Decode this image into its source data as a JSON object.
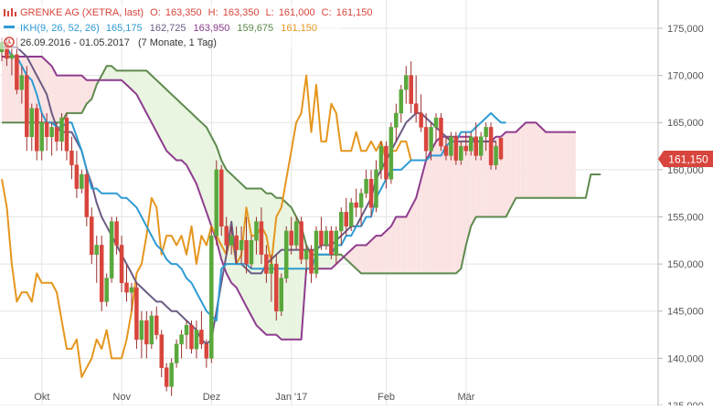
{
  "legend": {
    "main_title": "GRENKE AG (XETRA, last)",
    "ohlc": [
      {
        "label": "O:",
        "value": "163,350"
      },
      {
        "label": "H:",
        "value": "163,350"
      },
      {
        "label": "L:",
        "value": "161,000"
      },
      {
        "label": "C:",
        "value": "161,150"
      }
    ],
    "indicator_title": "IKH(9, 26, 52, 26)",
    "indicator_values": [
      "165,175",
      "162,725",
      "163,950",
      "159,675",
      "161,150"
    ],
    "range_text": "26.09.2016 - 01.05.2017",
    "duration_text": "(7 Monate, 1 Tag)"
  },
  "colors": {
    "up": "#5aa83c",
    "down": "#d8453c",
    "candle_wick": "#9a3030",
    "tenkan": "#2e9bd4",
    "kijun": "#6c5b84",
    "senkou_a": "#5e8a4e",
    "senkou_b": "#8e3c8e",
    "chikou": "#e5961e",
    "kumo_bull": "#e9f5e0",
    "kumo_bear": "#fbe3e3",
    "last_price_bg": "#d8453c",
    "grid": "#e4e4e4"
  },
  "chart_data": {
    "type": "candlestick",
    "title": "GRENKE AG (XETRA, last)",
    "x_ticks": [
      "Okt",
      "Nov",
      "Dez",
      "Jan '17",
      "Feb",
      "Mär"
    ],
    "y_ticks": [
      "135,000",
      "140,000",
      "145,000",
      "150,000",
      "155,000",
      "160,000",
      "165,000",
      "170,000",
      "175,000"
    ],
    "ylim": [
      135,
      178
    ],
    "last_price_label": "161,150",
    "last_price": 161.15,
    "grid": true,
    "legend_position": "top-left",
    "candles": [
      {
        "o": 172.5,
        "h": 174,
        "l": 171.5,
        "c": 173.5
      },
      {
        "o": 173.5,
        "h": 174,
        "l": 171,
        "c": 171.8
      },
      {
        "o": 171.8,
        "h": 173,
        "l": 170,
        "c": 172.2
      },
      {
        "o": 172.2,
        "h": 174,
        "l": 168,
        "c": 168.5
      },
      {
        "o": 168.5,
        "h": 171,
        "l": 167,
        "c": 170
      },
      {
        "o": 170,
        "h": 171,
        "l": 162,
        "c": 163.5
      },
      {
        "o": 163.5,
        "h": 167,
        "l": 162,
        "c": 166.5
      },
      {
        "o": 166.5,
        "h": 167,
        "l": 161,
        "c": 162
      },
      {
        "o": 162,
        "h": 166,
        "l": 161,
        "c": 165
      },
      {
        "o": 165,
        "h": 166,
        "l": 162,
        "c": 163.5
      },
      {
        "o": 163.5,
        "h": 165,
        "l": 161.5,
        "c": 164.5
      },
      {
        "o": 164.5,
        "h": 165,
        "l": 162,
        "c": 163
      },
      {
        "o": 163,
        "h": 166,
        "l": 162,
        "c": 165.5
      },
      {
        "o": 165.5,
        "h": 166,
        "l": 161,
        "c": 162
      },
      {
        "o": 162,
        "h": 163.5,
        "l": 159,
        "c": 160.5
      },
      {
        "o": 160.5,
        "h": 162,
        "l": 157,
        "c": 158
      },
      {
        "o": 158,
        "h": 160,
        "l": 157.5,
        "c": 159.5
      },
      {
        "o": 159.5,
        "h": 160,
        "l": 154,
        "c": 155
      },
      {
        "o": 155,
        "h": 156,
        "l": 150,
        "c": 151
      },
      {
        "o": 151,
        "h": 153,
        "l": 148,
        "c": 152
      },
      {
        "o": 152,
        "h": 153,
        "l": 145,
        "c": 146
      },
      {
        "o": 146,
        "h": 149,
        "l": 145.5,
        "c": 148.5
      },
      {
        "o": 148.5,
        "h": 155,
        "l": 148,
        "c": 154.5
      },
      {
        "o": 154.5,
        "h": 155,
        "l": 151,
        "c": 152
      },
      {
        "o": 152,
        "h": 153,
        "l": 147,
        "c": 148
      },
      {
        "o": 148,
        "h": 150,
        "l": 146,
        "c": 147
      },
      {
        "o": 147,
        "h": 148,
        "l": 145,
        "c": 147.5
      },
      {
        "o": 147.5,
        "h": 148,
        "l": 141,
        "c": 142
      },
      {
        "o": 142,
        "h": 145,
        "l": 140,
        "c": 144
      },
      {
        "o": 144,
        "h": 145,
        "l": 140,
        "c": 141.5
      },
      {
        "o": 141.5,
        "h": 145,
        "l": 141,
        "c": 144.5
      },
      {
        "o": 144.5,
        "h": 145.5,
        "l": 142,
        "c": 142.5
      },
      {
        "o": 142.5,
        "h": 143,
        "l": 138,
        "c": 139
      },
      {
        "o": 139,
        "h": 139.5,
        "l": 136.5,
        "c": 137
      },
      {
        "o": 137,
        "h": 140,
        "l": 136,
        "c": 139.5
      },
      {
        "o": 139.5,
        "h": 142,
        "l": 139,
        "c": 141.5
      },
      {
        "o": 141.5,
        "h": 143,
        "l": 140,
        "c": 142.5
      },
      {
        "o": 142.5,
        "h": 144,
        "l": 141,
        "c": 143.5
      },
      {
        "o": 143.5,
        "h": 144,
        "l": 140.5,
        "c": 141
      },
      {
        "o": 141,
        "h": 144,
        "l": 140,
        "c": 143
      },
      {
        "o": 143,
        "h": 145,
        "l": 141,
        "c": 141.5
      },
      {
        "o": 141.5,
        "h": 142,
        "l": 139,
        "c": 140
      },
      {
        "o": 140,
        "h": 154,
        "l": 139.5,
        "c": 153
      },
      {
        "o": 153,
        "h": 161,
        "l": 152,
        "c": 160
      },
      {
        "o": 160,
        "h": 160.5,
        "l": 153,
        "c": 154
      },
      {
        "o": 154,
        "h": 155,
        "l": 151,
        "c": 152
      },
      {
        "o": 152,
        "h": 154,
        "l": 151,
        "c": 153
      },
      {
        "o": 153,
        "h": 154,
        "l": 150,
        "c": 151.5
      },
      {
        "o": 151.5,
        "h": 154,
        "l": 150,
        "c": 152.5
      },
      {
        "o": 152.5,
        "h": 155,
        "l": 149,
        "c": 150
      },
      {
        "o": 150,
        "h": 153,
        "l": 149.5,
        "c": 152.5
      },
      {
        "o": 152.5,
        "h": 155,
        "l": 151,
        "c": 154.5
      },
      {
        "o": 154.5,
        "h": 156,
        "l": 150,
        "c": 151
      },
      {
        "o": 151,
        "h": 152,
        "l": 148,
        "c": 149
      },
      {
        "o": 149,
        "h": 151,
        "l": 146,
        "c": 150
      },
      {
        "o": 150,
        "h": 151,
        "l": 144,
        "c": 145
      },
      {
        "o": 145,
        "h": 149,
        "l": 144.5,
        "c": 148.5
      },
      {
        "o": 148.5,
        "h": 154,
        "l": 148,
        "c": 153.5
      },
      {
        "o": 153.5,
        "h": 155,
        "l": 151,
        "c": 152
      },
      {
        "o": 152,
        "h": 155,
        "l": 151.5,
        "c": 154.5
      },
      {
        "o": 154.5,
        "h": 155,
        "l": 150,
        "c": 150.5
      },
      {
        "o": 150.5,
        "h": 152,
        "l": 149,
        "c": 151.5
      },
      {
        "o": 151.5,
        "h": 152,
        "l": 148,
        "c": 149
      },
      {
        "o": 149,
        "h": 154,
        "l": 148.5,
        "c": 153.5
      },
      {
        "o": 153.5,
        "h": 155,
        "l": 151.5,
        "c": 152
      },
      {
        "o": 152,
        "h": 154,
        "l": 151.5,
        "c": 153.5
      },
      {
        "o": 153.5,
        "h": 154,
        "l": 150.5,
        "c": 151
      },
      {
        "o": 151,
        "h": 154,
        "l": 150,
        "c": 153.5
      },
      {
        "o": 153.5,
        "h": 156,
        "l": 152,
        "c": 155.5
      },
      {
        "o": 155.5,
        "h": 157,
        "l": 153,
        "c": 154
      },
      {
        "o": 154,
        "h": 157,
        "l": 153.5,
        "c": 156.5
      },
      {
        "o": 156.5,
        "h": 158,
        "l": 155,
        "c": 156
      },
      {
        "o": 156,
        "h": 158,
        "l": 154,
        "c": 157.5
      },
      {
        "o": 157.5,
        "h": 160,
        "l": 157,
        "c": 159
      },
      {
        "o": 159,
        "h": 160,
        "l": 155,
        "c": 156
      },
      {
        "o": 156,
        "h": 161,
        "l": 155.5,
        "c": 160
      },
      {
        "o": 160,
        "h": 163,
        "l": 159,
        "c": 162.5
      },
      {
        "o": 162.5,
        "h": 163,
        "l": 158,
        "c": 159
      },
      {
        "o": 159,
        "h": 165,
        "l": 158.5,
        "c": 164.5
      },
      {
        "o": 164.5,
        "h": 167,
        "l": 163,
        "c": 166
      },
      {
        "o": 166,
        "h": 169,
        "l": 165,
        "c": 168.5
      },
      {
        "o": 168.5,
        "h": 171,
        "l": 167,
        "c": 170
      },
      {
        "o": 170,
        "h": 171.5,
        "l": 166,
        "c": 167
      },
      {
        "o": 167,
        "h": 170,
        "l": 165,
        "c": 166
      },
      {
        "o": 166,
        "h": 168,
        "l": 164,
        "c": 164.5
      },
      {
        "o": 164.5,
        "h": 166,
        "l": 161,
        "c": 162
      },
      {
        "o": 162,
        "h": 165,
        "l": 161,
        "c": 164.5
      },
      {
        "o": 164.5,
        "h": 166,
        "l": 163,
        "c": 165.5
      },
      {
        "o": 165.5,
        "h": 166,
        "l": 162,
        "c": 162.5
      },
      {
        "o": 162.5,
        "h": 163.5,
        "l": 161,
        "c": 161.5
      },
      {
        "o": 161.5,
        "h": 164,
        "l": 161,
        "c": 163.5
      },
      {
        "o": 163.5,
        "h": 164,
        "l": 160.5,
        "c": 161
      },
      {
        "o": 161,
        "h": 163,
        "l": 160.5,
        "c": 162.5
      },
      {
        "o": 162.5,
        "h": 164,
        "l": 161.5,
        "c": 162
      },
      {
        "o": 162,
        "h": 164,
        "l": 161.5,
        "c": 163.5
      },
      {
        "o": 163.5,
        "h": 165,
        "l": 161,
        "c": 161.5
      },
      {
        "o": 161.5,
        "h": 164,
        "l": 161,
        "c": 163.5
      },
      {
        "o": 163.5,
        "h": 165,
        "l": 162,
        "c": 164.5
      },
      {
        "o": 164.5,
        "h": 165,
        "l": 160,
        "c": 160.5
      },
      {
        "o": 160.5,
        "h": 163,
        "l": 160,
        "c": 162.5
      },
      {
        "o": 163.35,
        "h": 163.35,
        "l": 161,
        "c": 161.15
      }
    ],
    "series": [
      {
        "name": "tenkan",
        "color_key": "tenkan",
        "start": 0,
        "values": [
          173,
          173,
          172,
          172,
          171,
          170,
          169.5,
          168,
          166,
          165,
          165,
          164.5,
          164.5,
          165,
          165,
          163.5,
          162,
          160,
          158,
          158,
          157.5,
          157.5,
          157.5,
          157.5,
          157,
          157,
          156.5,
          156,
          155,
          154,
          153,
          152,
          151.5,
          150.5,
          150,
          150,
          149.5,
          148.5,
          148,
          147,
          146,
          145,
          144.5,
          144,
          149.5,
          150,
          150,
          150,
          150,
          150,
          149.5,
          149.5,
          149.5,
          149.5,
          149.5,
          149.5,
          149.5,
          149.5,
          149.5,
          149.5,
          149.5,
          149.5,
          149.5,
          151,
          151,
          151,
          151,
          152,
          152,
          153,
          153,
          154,
          154,
          155,
          155,
          157,
          158,
          159,
          160,
          160,
          160,
          160.5,
          161,
          161,
          161,
          161,
          161.5,
          161.5,
          161.5,
          162.5,
          163,
          163,
          164,
          164,
          164,
          164.5,
          165,
          165.5,
          166,
          165.5,
          165,
          165
        ]
      },
      {
        "name": "kijun",
        "color_key": "kijun",
        "start": 0,
        "values": [
          173,
          173,
          173,
          173,
          172.5,
          172,
          171,
          170,
          169,
          168,
          166,
          164.5,
          164,
          164,
          164,
          163,
          162,
          160,
          158.5,
          156.5,
          155,
          154,
          153,
          152,
          151,
          150,
          149,
          148,
          147.5,
          147,
          146.5,
          146,
          146,
          145.5,
          145,
          145,
          144.5,
          144,
          143.5,
          143,
          142,
          141.5,
          142,
          145,
          148,
          151,
          154.5,
          150,
          150,
          149.5,
          149,
          149,
          149,
          150,
          150.5,
          151,
          151.5,
          151.5,
          151.5,
          151.5,
          151.5,
          151.5,
          151.5,
          151.5,
          152,
          152,
          152,
          152.5,
          153,
          153.5,
          154,
          154,
          155,
          156,
          157,
          159,
          160,
          161,
          162,
          163,
          164,
          165,
          165.5,
          166,
          166,
          165.5,
          165,
          164.5,
          164,
          163.5,
          163,
          163,
          163,
          163,
          163,
          163,
          163,
          163,
          163,
          163
        ]
      },
      {
        "name": "senkou_a",
        "color_key": "senkou_a",
        "start": 0,
        "values": [
          165,
          165,
          165,
          165,
          165,
          165,
          165,
          165,
          165,
          165,
          165,
          165,
          165,
          166,
          166,
          166,
          166,
          167,
          167.5,
          169,
          170,
          171,
          171,
          170.5,
          170.5,
          170.5,
          170.5,
          170.5,
          170.5,
          170.5,
          170,
          169.5,
          169,
          168.5,
          168,
          167.5,
          167,
          166.5,
          166,
          165.5,
          165,
          164.5,
          163.5,
          162.5,
          161,
          160,
          159.5,
          159,
          158.5,
          158,
          158,
          158,
          158,
          157.5,
          157.5,
          157,
          157,
          156.5,
          156,
          155,
          154,
          152,
          151,
          151,
          151,
          151,
          151,
          151,
          151,
          150.5,
          150,
          149.5,
          149,
          149,
          149,
          149,
          149,
          149,
          149,
          149,
          149,
          149,
          149,
          149,
          149,
          149,
          149,
          149,
          149,
          149,
          149,
          149,
          149.5,
          152,
          154,
          155,
          155,
          155,
          155,
          155,
          155,
          155,
          156,
          157,
          157,
          157,
          157,
          157,
          157,
          157,
          157,
          157,
          157,
          157,
          157,
          157,
          157,
          157,
          159.5,
          159.5,
          159.5
        ]
      },
      {
        "name": "senkou_b",
        "color_key": "senkou_b",
        "start": 0,
        "values": [
          172,
          172,
          172,
          172,
          172,
          172,
          172,
          172,
          172,
          171.5,
          171,
          170,
          170,
          170,
          170,
          170,
          170,
          169.5,
          169.5,
          169.5,
          169.5,
          169.5,
          169.5,
          169.5,
          169.5,
          169,
          168.5,
          168,
          167,
          166,
          165,
          164,
          163,
          162,
          161.5,
          161,
          161,
          160.5,
          159.5,
          158.5,
          157,
          155.5,
          154,
          152.5,
          150.5,
          149,
          148,
          147.5,
          146.5,
          145.5,
          144.5,
          143.5,
          143,
          142.5,
          142.5,
          142.5,
          142,
          142,
          142,
          142,
          142,
          149.5,
          149.5,
          149.5,
          149.5,
          149.5,
          149.5,
          150,
          150.5,
          151,
          151.5,
          152,
          152,
          152,
          152.5,
          153,
          153,
          153.5,
          154,
          155,
          155,
          155,
          156,
          157,
          159,
          161,
          162,
          163,
          163.5,
          163.5,
          163.5,
          163.5,
          163.5,
          163.5,
          163.5,
          163,
          163,
          163,
          163,
          163.5,
          163.5,
          164,
          164,
          164,
          164.5,
          165,
          165,
          165,
          164.5,
          164,
          164,
          164,
          164,
          164,
          164,
          164
        ]
      },
      {
        "name": "chikou",
        "color_key": "chikou",
        "start": 0,
        "values": [
          159,
          156,
          150,
          146,
          147,
          147,
          146,
          149,
          148,
          148,
          148,
          147,
          144,
          141,
          141,
          142,
          138,
          139,
          140,
          142,
          141,
          143,
          140,
          140,
          140,
          142,
          145,
          149,
          150,
          153,
          157,
          156,
          151,
          153,
          153,
          152,
          153,
          151,
          154,
          150,
          153,
          152,
          154,
          153,
          152,
          151,
          153,
          150,
          151,
          156,
          153,
          153,
          154,
          153,
          150,
          155,
          156,
          159,
          162,
          165,
          166,
          170,
          164,
          169,
          163,
          163,
          167,
          166,
          162,
          162,
          162,
          164,
          162,
          162,
          163,
          162,
          163,
          161,
          162,
          162,
          163,
          163,
          161
        ]
      }
    ]
  }
}
